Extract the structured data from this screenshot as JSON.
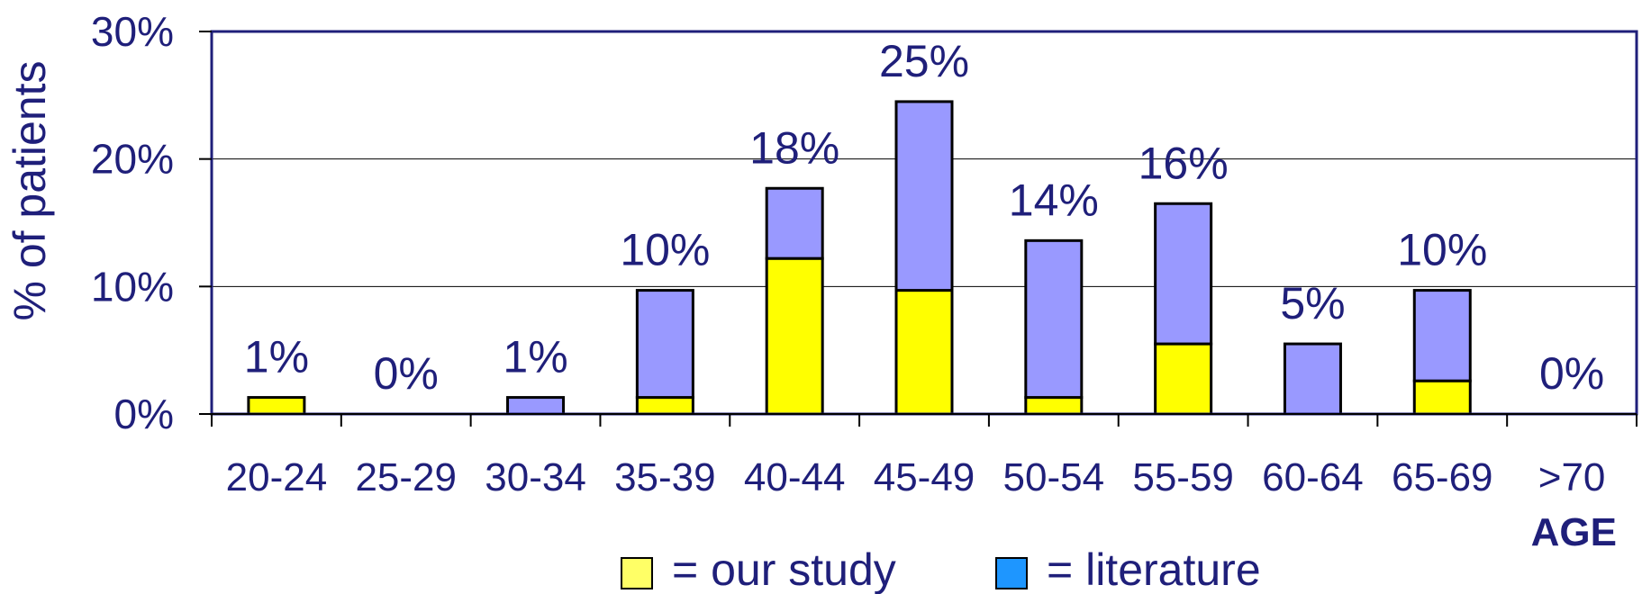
{
  "chart_data": {
    "type": "bar",
    "stacked": true,
    "categories": [
      "20-24",
      "25-29",
      "30-34",
      "35-39",
      "40-44",
      "45-49",
      "50-54",
      "55-59",
      "60-64",
      "65-69",
      ">70"
    ],
    "series": [
      {
        "name": "our study",
        "legend_label": "= our study",
        "color": "#ffff00",
        "swatch_color": "#ffff66",
        "values": [
          1.3,
          0,
          0,
          1.3,
          12.2,
          9.7,
          1.3,
          5.5,
          0,
          2.6,
          0
        ]
      },
      {
        "name": "literature",
        "legend_label": "= literature",
        "color": "#9999ff",
        "swatch_color": "#1e96ff",
        "values": [
          0,
          0,
          1.3,
          8.4,
          5.5,
          14.8,
          12.3,
          11.0,
          5.5,
          7.1,
          0
        ]
      }
    ],
    "totals": [
      1.3,
      0,
      1.3,
      9.7,
      17.7,
      24.5,
      13.6,
      16.5,
      5.5,
      9.7,
      0
    ],
    "data_labels": [
      "1%",
      "0%",
      "1%",
      "10%",
      "18%",
      "25%",
      "14%",
      "16%",
      "5%",
      "10%",
      "0%"
    ],
    "ylabel": "% of patients",
    "xlabel": "AGE",
    "ylim": [
      0,
      30
    ],
    "yticks": [
      0,
      10,
      20,
      30
    ],
    "ytick_labels": [
      "0%",
      "10%",
      "20%",
      "30%"
    ],
    "grid": true,
    "legend_position": "bottom-center",
    "colors": {
      "text": "#1f1f7a",
      "frame": "#1f1f7a",
      "grid": "#000000",
      "bar_outline": "#000000"
    }
  }
}
